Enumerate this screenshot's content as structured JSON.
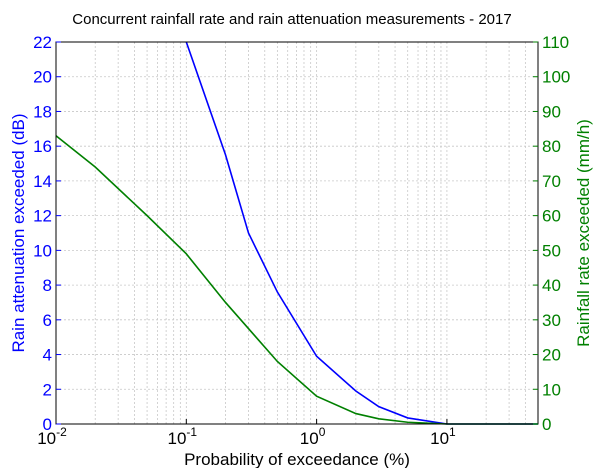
{
  "chart_data": {
    "type": "line",
    "title": "Concurrent rainfall rate and rain attenuation measurements - 2017",
    "xlabel": "Probability of exceedance (%)",
    "xscale": "log",
    "xlim": [
      0.01,
      50
    ],
    "x_ticks": [
      {
        "base": "10",
        "exp": "-2",
        "value": 0.01
      },
      {
        "base": "10",
        "exp": "-1",
        "value": 0.1
      },
      {
        "base": "10",
        "exp": "0",
        "value": 1
      },
      {
        "base": "10",
        "exp": "1",
        "value": 10
      }
    ],
    "grid": true,
    "y_left": {
      "label": "Rain attenuation exceeded (dB)",
      "range": [
        0,
        22
      ],
      "ticks": [
        "0",
        "2",
        "4",
        "6",
        "8",
        "10",
        "12",
        "14",
        "16",
        "18",
        "20",
        "22"
      ],
      "color": "#0000ff"
    },
    "y_right": {
      "label": "Rainfall rate exceeded (mm/h)",
      "range": [
        0,
        110
      ],
      "ticks": [
        "0",
        "10",
        "20",
        "30",
        "40",
        "50",
        "60",
        "70",
        "80",
        "90",
        "100",
        "110"
      ],
      "color": "#008000"
    },
    "series": [
      {
        "axis": "left",
        "color": "#0000ff",
        "points": [
          [
            0.1,
            22.0
          ],
          [
            0.2,
            15.5
          ],
          [
            0.3,
            11.0
          ],
          [
            0.5,
            7.6
          ],
          [
            1,
            3.9
          ],
          [
            2,
            1.9
          ],
          [
            3,
            1.0
          ],
          [
            5,
            0.35
          ],
          [
            10,
            0.0
          ],
          [
            20,
            0.0
          ],
          [
            50,
            0.0
          ]
        ]
      },
      {
        "axis": "right",
        "color": "#008000",
        "points": [
          [
            0.01,
            83
          ],
          [
            0.02,
            74
          ],
          [
            0.05,
            60
          ],
          [
            0.1,
            49
          ],
          [
            0.2,
            35
          ],
          [
            0.5,
            18
          ],
          [
            1,
            8
          ],
          [
            2,
            3
          ],
          [
            3,
            1.5
          ],
          [
            5,
            0.5
          ],
          [
            10,
            0.0
          ],
          [
            20,
            0.0
          ],
          [
            50,
            0.0
          ]
        ]
      }
    ]
  }
}
